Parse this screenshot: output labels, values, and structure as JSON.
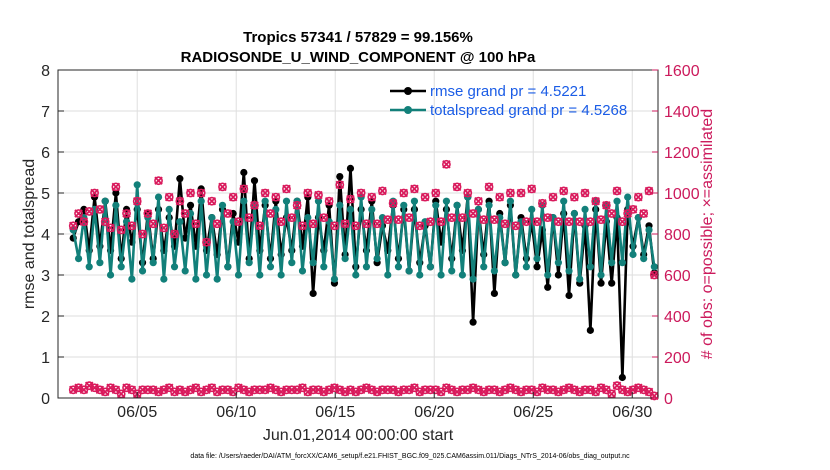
{
  "chart_data": {
    "type": "line",
    "title": "Tropics 57341 / 57829 = 99.156%",
    "subtitle": "RADIOSONDE_U_WIND_COMPONENT @ 100 hPa",
    "xlabel": "Jun.01,2014 00:00:00 start",
    "ylabel_left": "rmse and totalspread",
    "ylabel_right": "# of obs: o=possible; ×=assimilated",
    "x_range": [
      1,
      31.3
    ],
    "ylim_left": [
      0,
      8
    ],
    "ylim_right": [
      0,
      1600
    ],
    "left_ticks": [
      "0",
      "1",
      "2",
      "3",
      "4",
      "5",
      "6",
      "7",
      "8"
    ],
    "right_ticks": [
      "0",
      "200",
      "400",
      "600",
      "800",
      "1000",
      "1200",
      "1400",
      "1600"
    ],
    "x_ticks": [
      {
        "value": 5,
        "label": "06/05"
      },
      {
        "value": 10,
        "label": "06/10"
      },
      {
        "value": 15,
        "label": "06/15"
      },
      {
        "value": 20,
        "label": "06/20"
      },
      {
        "value": 25,
        "label": "06/25"
      },
      {
        "value": 30,
        "label": "06/30"
      }
    ],
    "footnote": "data file: /Users/raeder/DAI/ATM_forcXX/CAM6_setup/f.e21.FHIST_BGC.f09_025.CAM6assim.011/Diags_NTrS_2014-06/obs_diag_output.nc",
    "series": [
      {
        "name": "rmse",
        "legend": "rmse grand pr = 4.5221",
        "color": "#000000",
        "values": [
          3.9,
          4.3,
          4.6,
          3.6,
          4.9,
          3.7,
          4.8,
          3.6,
          5.0,
          3.4,
          4.6,
          3.8,
          4.6,
          3.3,
          4.5,
          3.4,
          4.6,
          3.6,
          4.4,
          3.7,
          5.35,
          3.9,
          4.7,
          3.7,
          5.1,
          3.6,
          4.4,
          3.5,
          4.6,
          3.2,
          4.5,
          3.8,
          5.5,
          3.4,
          5.3,
          3.6,
          4.7,
          3.4,
          4.8,
          3.5,
          4.4,
          3.6,
          4.8,
          3.7,
          4.9,
          2.55,
          4.4,
          3.6,
          4.7,
          2.8,
          5.4,
          3.5,
          5.6,
          3.2,
          4.6,
          3.6,
          4.8,
          3.3,
          4.2,
          3.6,
          4.7,
          3.4,
          4.6,
          3.1,
          4.6,
          3.3,
          4.2,
          3.2,
          4.8,
          3.8,
          4.6,
          3.4,
          4.7,
          3.6,
          4.9,
          1.85,
          4.6,
          3.5,
          4.8,
          2.55,
          4.5,
          3.3,
          4.7,
          3.0,
          4.4,
          3.4,
          4.3,
          3.2,
          4.1,
          2.7,
          4.4,
          3.0,
          4.5,
          2.5,
          4.5,
          2.8,
          4.2,
          1.65,
          4.6,
          2.8,
          4.3,
          2.8,
          4.4,
          0.5,
          4.6,
          3.7,
          4.4,
          3.5,
          4.2,
          3.05
        ]
      },
      {
        "name": "totalspread",
        "legend": "totalspread grand pr = 4.5268",
        "color": "#12807a",
        "values": [
          4.1,
          3.4,
          4.4,
          3.2,
          4.6,
          3.3,
          4.8,
          3.0,
          4.7,
          3.2,
          4.3,
          2.9,
          5.2,
          3.1,
          4.4,
          3.3,
          4.9,
          2.9,
          4.6,
          3.2,
          4.3,
          3.1,
          4.5,
          2.9,
          4.8,
          3.0,
          4.4,
          2.9,
          4.7,
          3.2,
          4.3,
          3.0,
          4.8,
          3.3,
          4.7,
          3.0,
          4.8,
          3.2,
          4.6,
          3.0,
          4.8,
          3.3,
          4.8,
          3.1,
          4.4,
          3.3,
          4.8,
          3.2,
          4.3,
          2.9,
          4.7,
          3.4,
          4.6,
          3.0,
          4.9,
          3.2,
          4.6,
          3.4,
          4.4,
          3.0,
          4.8,
          3.2,
          4.7,
          3.1,
          4.8,
          3.0,
          4.3,
          3.2,
          4.7,
          3.0,
          4.8,
          3.1,
          4.7,
          3.0,
          4.9,
          2.9,
          4.6,
          3.2,
          4.7,
          3.1,
          4.4,
          3.3,
          4.8,
          3.0,
          4.3,
          3.2,
          4.6,
          3.4,
          4.7,
          3.0,
          4.4,
          3.3,
          4.8,
          3.1,
          4.5,
          2.9,
          4.6,
          3.2,
          4.8,
          3.0,
          4.7,
          3.3,
          4.8,
          3.3,
          4.9,
          3.5,
          4.4,
          3.4,
          4.1,
          3.2
        ]
      },
      {
        "name": "obs_upper",
        "legend": "",
        "color": "#d91a5c",
        "values": [
          840,
          900,
          860,
          910,
          1000,
          920,
          860,
          830,
          1030,
          820,
          900,
          840,
          960,
          800,
          900,
          850,
          1060,
          830,
          980,
          800,
          960,
          900,
          1000,
          850,
          1000,
          760,
          960,
          850,
          1030,
          900,
          980,
          860,
          1020,
          880,
          940,
          840,
          1000,
          900,
          980,
          860,
          1020,
          880,
          940,
          840,
          1000,
          850,
          990,
          880,
          960,
          840,
          1040,
          850,
          970,
          840,
          1000,
          850,
          980,
          850,
          1010,
          870,
          950,
          870,
          1000,
          880,
          1020,
          840,
          980,
          860,
          1000,
          860,
          1140,
          880,
          1030,
          880,
          1000,
          900,
          960,
          870,
          1030,
          870,
          980,
          850,
          1000,
          840,
          1000,
          860,
          1020,
          860,
          950,
          880,
          980,
          860,
          1010,
          860,
          980,
          860,
          1000,
          860,
          960,
          870,
          940,
          900,
          1010,
          860,
          900,
          920,
          980,
          900,
          1010,
          600
        ]
      },
      {
        "name": "obs_lower",
        "legend": "",
        "color": "#d91a5c",
        "values": [
          40,
          50,
          40,
          60,
          50,
          40,
          30,
          50,
          40,
          20,
          50,
          40,
          20,
          40,
          40,
          40,
          30,
          40,
          50,
          30,
          40,
          30,
          40,
          50,
          30,
          40,
          50,
          30,
          40,
          40,
          30,
          50,
          40,
          30,
          40,
          40,
          40,
          50,
          40,
          30,
          40,
          40,
          40,
          50,
          30,
          40,
          40,
          30,
          40,
          50,
          40,
          30,
          40,
          30,
          40,
          50,
          40,
          30,
          40,
          40,
          40,
          30,
          40,
          40,
          50,
          30,
          40,
          40,
          40,
          30,
          50,
          40,
          30,
          40,
          40,
          50,
          40,
          30,
          40,
          40,
          30,
          40,
          50,
          40,
          30,
          40,
          40,
          30,
          50,
          40,
          40,
          30,
          40,
          50,
          40,
          30,
          40,
          40,
          30,
          50,
          40,
          20,
          60,
          40,
          30,
          40,
          50,
          40,
          30,
          10
        ]
      }
    ]
  }
}
